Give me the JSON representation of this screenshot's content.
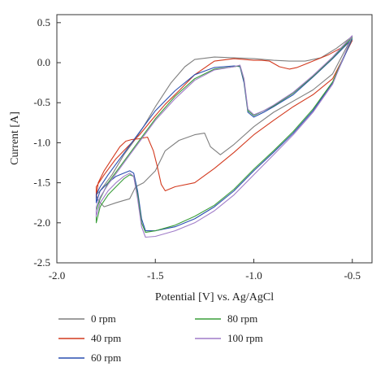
{
  "chart_data": {
    "type": "line",
    "title": "",
    "xlabel": "Potential [V] vs. Ag/AgCl",
    "ylabel": "Current [A]",
    "xlim": [
      -2.0,
      -0.4
    ],
    "ylim": [
      -2.5,
      0.6
    ],
    "x_ticks": [
      -2.0,
      -1.5,
      -1.0,
      -0.5
    ],
    "x_tick_labels": [
      "-2.0",
      "-1.5",
      "-1.0",
      "-0.5"
    ],
    "y_ticks": [
      0.5,
      0.0,
      -0.5,
      -1.0,
      -1.5,
      -2.0,
      -2.5
    ],
    "y_tick_labels": [
      "0.5",
      "0.0",
      "-0.5",
      "-1.0",
      "-1.5",
      "-2.0",
      "-2.5"
    ],
    "grid": false,
    "legend_position": "bottom",
    "series": [
      {
        "name": "0 rpm",
        "color": "#7f7f7f",
        "x": [
          -0.5,
          -0.58,
          -0.66,
          -0.74,
          -0.82,
          -0.9,
          -1.0,
          -1.1,
          -1.2,
          -1.3,
          -1.35,
          -1.42,
          -1.5,
          -1.56,
          -1.6,
          -1.66,
          -1.72,
          -1.78,
          -1.8,
          -1.79,
          -1.76,
          -1.7,
          -1.66,
          -1.63,
          -1.6,
          -1.56,
          -1.5,
          -1.45,
          -1.38,
          -1.3,
          -1.25,
          -1.22,
          -1.17,
          -1.1,
          -1.0,
          -0.9,
          -0.8,
          -0.7,
          -0.6,
          -0.5
        ],
        "y": [
          0.33,
          0.18,
          0.06,
          0.02,
          0.02,
          0.03,
          0.05,
          0.06,
          0.07,
          0.04,
          -0.05,
          -0.25,
          -0.55,
          -0.8,
          -0.95,
          -1.15,
          -1.4,
          -1.6,
          -1.65,
          -1.72,
          -1.8,
          -1.75,
          -1.72,
          -1.7,
          -1.55,
          -1.5,
          -1.35,
          -1.1,
          -0.97,
          -0.9,
          -0.88,
          -1.05,
          -1.15,
          -1.02,
          -0.8,
          -0.62,
          -0.48,
          -0.34,
          -0.14,
          0.33
        ]
      },
      {
        "name": "40 rpm",
        "color": "#d33a1f",
        "x": [
          -0.5,
          -0.56,
          -0.62,
          -0.68,
          -0.74,
          -0.78,
          -0.82,
          -0.87,
          -0.92,
          -0.96,
          -1.0,
          -1.05,
          -1.1,
          -1.2,
          -1.3,
          -1.38,
          -1.45,
          -1.52,
          -1.58,
          -1.64,
          -1.7,
          -1.76,
          -1.8,
          -1.8,
          -1.79,
          -1.76,
          -1.72,
          -1.68,
          -1.65,
          -1.62,
          -1.58,
          -1.54,
          -1.51,
          -1.49,
          -1.47,
          -1.45,
          -1.4,
          -1.3,
          -1.2,
          -1.1,
          -1.0,
          -0.9,
          -0.8,
          -0.7,
          -0.6,
          -0.5
        ],
        "y": [
          0.28,
          0.18,
          0.1,
          0.04,
          -0.02,
          -0.06,
          -0.08,
          -0.05,
          0.02,
          0.03,
          0.03,
          0.04,
          0.05,
          0.02,
          -0.15,
          -0.35,
          -0.52,
          -0.72,
          -0.9,
          -1.05,
          -1.2,
          -1.4,
          -1.55,
          -1.7,
          -1.5,
          -1.35,
          -1.2,
          -1.05,
          -0.98,
          -0.96,
          -0.95,
          -0.93,
          -1.1,
          -1.3,
          -1.52,
          -1.6,
          -1.55,
          -1.5,
          -1.32,
          -1.12,
          -0.9,
          -0.72,
          -0.55,
          -0.4,
          -0.2,
          0.28
        ]
      },
      {
        "name": "60 rpm",
        "color": "#2a4fb0",
        "x": [
          -0.5,
          -0.6,
          -0.7,
          -0.8,
          -0.9,
          -0.95,
          -1.0,
          -1.03,
          -1.05,
          -1.07,
          -1.1,
          -1.2,
          -1.3,
          -1.4,
          -1.5,
          -1.56,
          -1.62,
          -1.68,
          -1.74,
          -1.78,
          -1.8,
          -1.8,
          -1.78,
          -1.74,
          -1.7,
          -1.66,
          -1.63,
          -1.61,
          -1.59,
          -1.57,
          -1.55,
          -1.5,
          -1.4,
          -1.3,
          -1.2,
          -1.1,
          -1.0,
          -0.9,
          -0.8,
          -0.7,
          -0.6,
          -0.5
        ],
        "y": [
          0.3,
          0.05,
          -0.18,
          -0.4,
          -0.55,
          -0.62,
          -0.68,
          -0.62,
          -0.25,
          -0.05,
          -0.04,
          -0.06,
          -0.15,
          -0.35,
          -0.6,
          -0.8,
          -1.0,
          -1.2,
          -1.4,
          -1.55,
          -1.65,
          -1.75,
          -1.6,
          -1.5,
          -1.42,
          -1.38,
          -1.35,
          -1.38,
          -1.6,
          -1.95,
          -2.1,
          -2.1,
          -2.05,
          -1.95,
          -1.8,
          -1.6,
          -1.35,
          -1.12,
          -0.88,
          -0.6,
          -0.25,
          0.3
        ]
      },
      {
        "name": "80 rpm",
        "color": "#3a9e3a",
        "x": [
          -0.5,
          -0.6,
          -0.7,
          -0.8,
          -0.9,
          -0.95,
          -1.0,
          -1.03,
          -1.05,
          -1.07,
          -1.1,
          -1.2,
          -1.3,
          -1.4,
          -1.5,
          -1.56,
          -1.62,
          -1.68,
          -1.74,
          -1.78,
          -1.8,
          -1.8,
          -1.78,
          -1.74,
          -1.7,
          -1.66,
          -1.63,
          -1.61,
          -1.59,
          -1.57,
          -1.55,
          -1.5,
          -1.4,
          -1.3,
          -1.2,
          -1.1,
          -1.0,
          -0.9,
          -0.8,
          -0.7,
          -0.6,
          -0.5
        ],
        "y": [
          0.32,
          0.06,
          -0.17,
          -0.38,
          -0.54,
          -0.6,
          -0.66,
          -0.6,
          -0.22,
          -0.04,
          -0.05,
          -0.08,
          -0.2,
          -0.42,
          -0.7,
          -0.9,
          -1.1,
          -1.3,
          -1.5,
          -1.7,
          -1.85,
          -2.0,
          -1.8,
          -1.65,
          -1.55,
          -1.45,
          -1.4,
          -1.42,
          -1.65,
          -2.0,
          -2.12,
          -2.1,
          -2.03,
          -1.92,
          -1.78,
          -1.58,
          -1.33,
          -1.1,
          -0.86,
          -0.58,
          -0.24,
          0.32
        ]
      },
      {
        "name": "100 rpm",
        "color": "#a07cc8",
        "x": [
          -0.5,
          -0.6,
          -0.7,
          -0.8,
          -0.9,
          -0.95,
          -1.0,
          -1.03,
          -1.05,
          -1.07,
          -1.1,
          -1.2,
          -1.3,
          -1.4,
          -1.5,
          -1.56,
          -1.62,
          -1.68,
          -1.74,
          -1.78,
          -1.8,
          -1.8,
          -1.78,
          -1.74,
          -1.7,
          -1.66,
          -1.63,
          -1.61,
          -1.59,
          -1.57,
          -1.55,
          -1.5,
          -1.4,
          -1.3,
          -1.2,
          -1.1,
          -1.0,
          -0.9,
          -0.8,
          -0.7,
          -0.6,
          -0.5
        ],
        "y": [
          0.34,
          0.07,
          -0.16,
          -0.37,
          -0.53,
          -0.6,
          -0.65,
          -0.58,
          -0.2,
          -0.03,
          -0.05,
          -0.09,
          -0.22,
          -0.45,
          -0.72,
          -0.92,
          -1.12,
          -1.32,
          -1.52,
          -1.68,
          -1.8,
          -1.92,
          -1.75,
          -1.6,
          -1.5,
          -1.42,
          -1.38,
          -1.42,
          -1.7,
          -2.05,
          -2.18,
          -2.17,
          -2.1,
          -2.0,
          -1.85,
          -1.65,
          -1.4,
          -1.15,
          -0.9,
          -0.62,
          -0.27,
          0.34
        ]
      }
    ]
  }
}
